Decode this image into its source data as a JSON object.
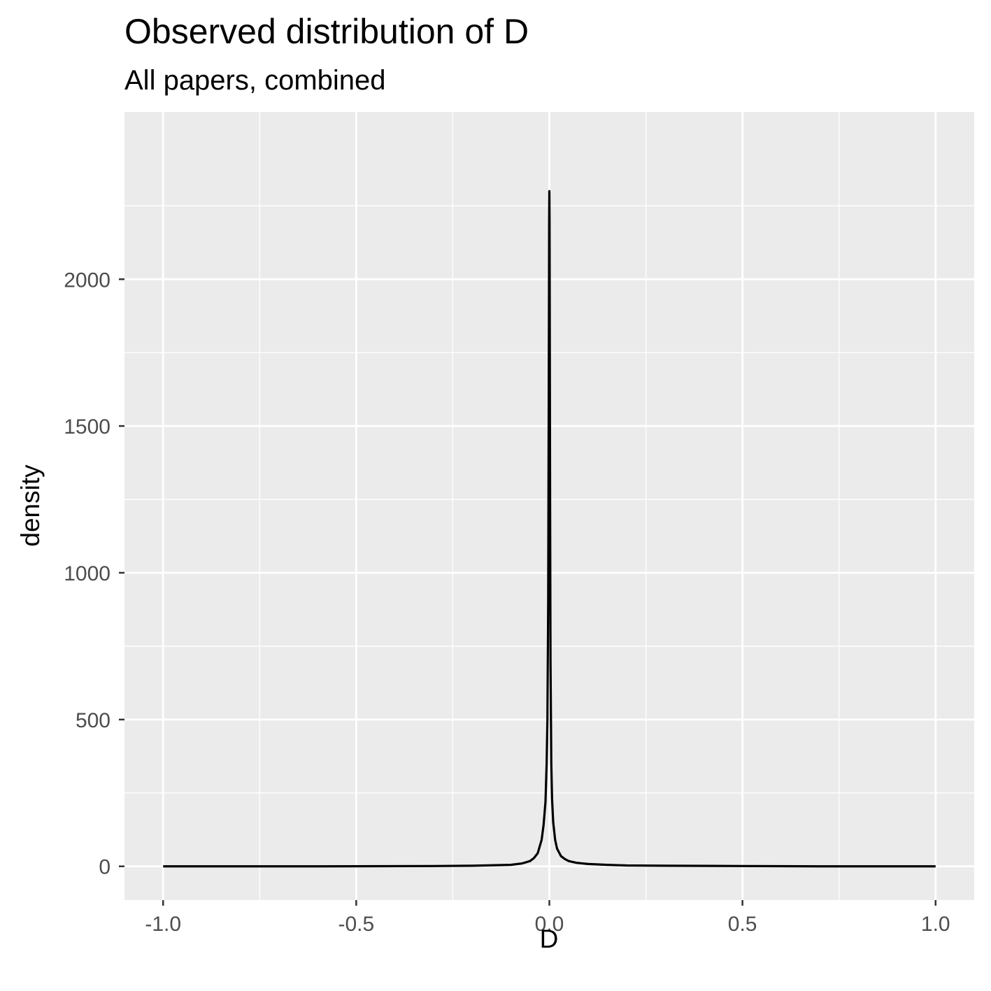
{
  "chart_data": {
    "type": "line",
    "title": "Observed distribution of D",
    "subtitle": "All papers, combined",
    "xlabel": "D",
    "ylabel": "density",
    "xlim": [
      -1.1,
      1.1
    ],
    "ylim": [
      -115,
      2570
    ],
    "x_ticks": [
      -1.0,
      -0.5,
      0.0,
      0.5,
      1.0
    ],
    "x_tick_labels": [
      "-1.0",
      "-0.5",
      "0.0",
      "0.5",
      "1.0"
    ],
    "y_ticks": [
      0,
      500,
      1000,
      1500,
      2000
    ],
    "y_tick_labels": [
      "0",
      "500",
      "1000",
      "1500",
      "2000"
    ],
    "grid": true,
    "legend": "none",
    "series": [
      {
        "color": "#000000",
        "x": [
          -1.0,
          -0.6,
          -0.3,
          -0.2,
          -0.1,
          -0.07,
          -0.05,
          -0.04,
          -0.03,
          -0.02,
          -0.015,
          -0.01,
          -0.007,
          -0.005,
          -0.003,
          -0.002,
          -0.001,
          -0.0005,
          0.0,
          0.0005,
          0.001,
          0.002,
          0.003,
          0.005,
          0.007,
          0.01,
          0.015,
          0.02,
          0.03,
          0.04,
          0.05,
          0.07,
          0.1,
          0.15,
          0.2,
          0.3,
          0.5,
          0.7,
          1.0
        ],
        "y": [
          0,
          0,
          1,
          2,
          5,
          10,
          18,
          28,
          45,
          90,
          140,
          220,
          350,
          500,
          900,
          1400,
          1900,
          2200,
          2300,
          2200,
          1900,
          1200,
          700,
          350,
          230,
          150,
          90,
          60,
          35,
          25,
          18,
          12,
          8,
          5,
          3,
          2,
          1,
          0,
          0
        ]
      }
    ]
  }
}
